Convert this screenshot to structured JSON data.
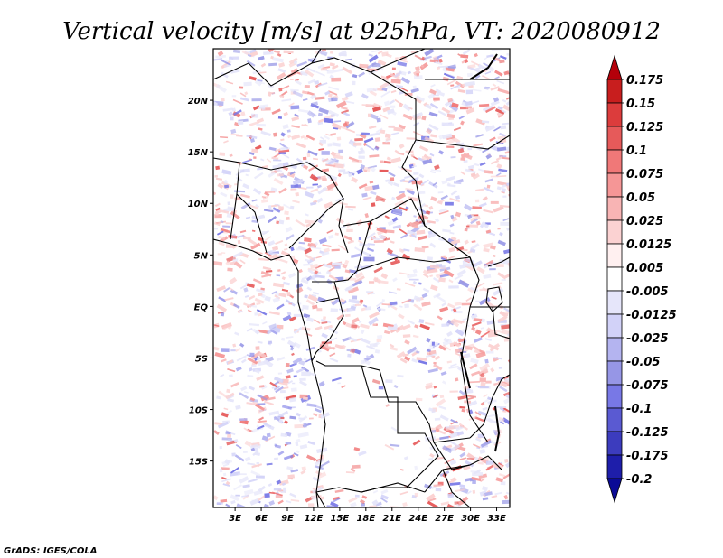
{
  "chart_data": {
    "type": "heatmap",
    "title": "Vertical velocity [m/s] at 925hPa, VT: 2020080912",
    "variable": "Vertical velocity",
    "units": "m/s",
    "level": "925hPa",
    "valid_time": "2020080912",
    "x_ticks": [
      "3E",
      "6E",
      "9E",
      "12E",
      "15E",
      "18E",
      "21E",
      "24E",
      "27E",
      "30E",
      "33E"
    ],
    "y_ticks": [
      "20N",
      "15N",
      "10N",
      "5N",
      "EQ",
      "5S",
      "10S",
      "15S"
    ],
    "lon_range": [
      0.5,
      34.5
    ],
    "lat_range": [
      -19.5,
      25
    ],
    "colorbar_levels": [
      "0.175",
      "0.15",
      "0.125",
      "0.1",
      "0.075",
      "0.05",
      "0.025",
      "0.0125",
      "0.005",
      "-0.005",
      "-0.0125",
      "-0.025",
      "-0.05",
      "-0.075",
      "-0.1",
      "-0.125",
      "-0.175",
      "-0.2"
    ],
    "colorbar_colors": [
      "#b4000a",
      "#c81e1e",
      "#dc3c3c",
      "#e65a5a",
      "#f07878",
      "#f59696",
      "#f8b4b4",
      "#fbd2d2",
      "#fff0f0",
      "#ffffff",
      "#e6e6fa",
      "#d2d2f8",
      "#b4b4f0",
      "#9696e6",
      "#7878e6",
      "#5a5ad2",
      "#3c3cbe",
      "#1e1eaa",
      "#0a0a96"
    ]
  },
  "credit": "GrADS: IGES/COLA"
}
